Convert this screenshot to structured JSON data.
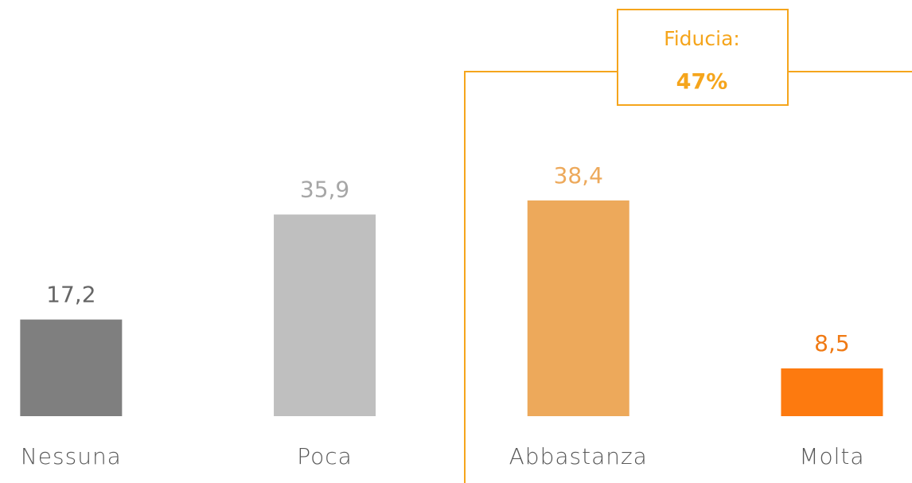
{
  "chart_data": {
    "type": "bar",
    "categories": [
      "Nessuna",
      "Poca",
      "Abbastanza",
      "Molta"
    ],
    "values": [
      17.2,
      35.9,
      38.4,
      8.5
    ],
    "value_labels": [
      "17,2",
      "35,9",
      "38,4",
      "8,5"
    ],
    "colors": [
      "#7f7f7f",
      "#bfbfbf",
      "#eda95b",
      "#fd7a0f"
    ],
    "label_colors": [
      "#666666",
      "#a6a6a6",
      "#eda95b",
      "#f07a14"
    ],
    "ylim": [
      0,
      50
    ],
    "annotation": {
      "title": "Fiducia:",
      "text": "47%",
      "color": "#f5a51c"
    }
  }
}
